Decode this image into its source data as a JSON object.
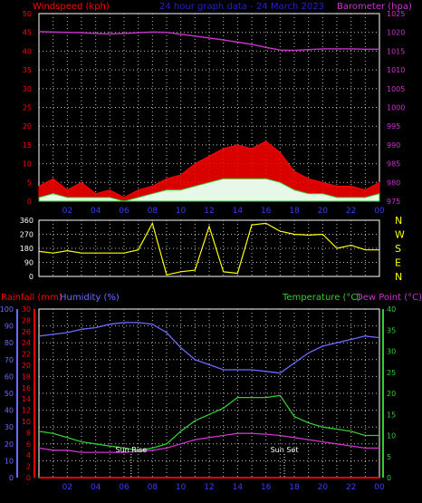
{
  "title": "24 hour graph data - 24 March 2023",
  "colors": {
    "background": "#000000",
    "axis": "#ffffff",
    "grid": "#bdbdbd",
    "wind_label": "#ff0000",
    "baro": "#cc33cc",
    "title": "#2222cc",
    "dir": "#ffff00",
    "rain": "#ff0000",
    "humidity": "#6b6bff",
    "temp": "#33cc33",
    "dew": "#cc33cc",
    "sun": "#ffffff",
    "time": "#3b3bff"
  },
  "time_ticks": [
    "02",
    "04",
    "06",
    "08",
    "10",
    "12",
    "14",
    "16",
    "18",
    "20",
    "22",
    "00"
  ],
  "chart_data": [
    {
      "type": "line",
      "id": "wind-baro",
      "title": "24 hour graph data - 24 March 2023",
      "ylabel_left": "Windspeed (kph)",
      "ylabel_right": "Barometer (hpa)",
      "y_left_ticks": [
        0,
        5,
        10,
        15,
        20,
        25,
        30,
        35,
        40,
        45,
        50
      ],
      "y_right_ticks": [
        975,
        980,
        985,
        990,
        995,
        1000,
        1005,
        1010,
        1015,
        1020,
        1025
      ],
      "ylim_left": [
        0,
        50
      ],
      "ylim_right": [
        975,
        1025
      ],
      "grid": true,
      "x_hours": [
        0,
        1,
        2,
        3,
        4,
        5,
        6,
        7,
        8,
        9,
        10,
        11,
        12,
        13,
        14,
        15,
        16,
        17,
        18,
        19,
        20,
        21,
        22,
        23,
        24
      ],
      "series": [
        {
          "name": "Barometer (hpa)",
          "axis": "right",
          "color": "#cc33cc",
          "values": [
            1020.2,
            1020.1,
            1020.0,
            1019.9,
            1019.7,
            1019.6,
            1019.7,
            1019.9,
            1020.1,
            1020.0,
            1019.5,
            1019.0,
            1018.5,
            1018.0,
            1017.4,
            1016.8,
            1016.0,
            1015.3,
            1015.2,
            1015.4,
            1015.6,
            1015.6,
            1015.6,
            1015.5,
            1015.5
          ]
        },
        {
          "name": "Wind gust",
          "axis": "left",
          "color": "#ff0000",
          "values": [
            4,
            6,
            3,
            5,
            2,
            3,
            1,
            3,
            4,
            6,
            7,
            10,
            12,
            14,
            15,
            14,
            16,
            13,
            8,
            6,
            5,
            4,
            4,
            3,
            5
          ]
        },
        {
          "name": "Wind speed",
          "axis": "left",
          "color": "#ffffff",
          "values": [
            1,
            2,
            1,
            1,
            1,
            1,
            0,
            1,
            2,
            3,
            3,
            4,
            5,
            6,
            6,
            6,
            6,
            5,
            3,
            2,
            2,
            1,
            1,
            1,
            2
          ]
        }
      ]
    },
    {
      "type": "line",
      "id": "direction",
      "ylabel_right": [
        "N",
        "W",
        "S",
        "E",
        "N"
      ],
      "y_left_ticks": [
        0,
        90,
        180,
        270,
        360
      ],
      "ylim": [
        0,
        360
      ],
      "x_hours": [
        0,
        1,
        2,
        3,
        4,
        5,
        6,
        7,
        8,
        9,
        10,
        11,
        12,
        13,
        14,
        15,
        16,
        17,
        18,
        19,
        20,
        21,
        22,
        23,
        24
      ],
      "series": [
        {
          "name": "Wind direction",
          "color": "#ffff00",
          "values": [
            160,
            150,
            165,
            150,
            150,
            150,
            150,
            170,
            340,
            10,
            30,
            40,
            320,
            30,
            20,
            330,
            340,
            290,
            270,
            265,
            270,
            180,
            200,
            170,
            170
          ]
        }
      ]
    },
    {
      "type": "line",
      "id": "temp-humidity",
      "ylabel_rain": "Rainfall (mm)",
      "ylabel_hum": "Humidity (%)",
      "ylabel_temp": "Temperature (°C)",
      "ylabel_dew": "Dew Point (°C)",
      "rain_ticks": [
        0,
        2,
        4,
        6,
        8,
        10,
        12,
        14,
        16,
        18,
        20,
        22,
        24,
        26,
        28,
        30
      ],
      "humidity_ticks": [
        0,
        10,
        20,
        30,
        40,
        50,
        60,
        70,
        80,
        90,
        100
      ],
      "temp_ticks": [
        0,
        5,
        10,
        15,
        20,
        25,
        30,
        35,
        40
      ],
      "ylim_rain": [
        0,
        30
      ],
      "ylim_humidity": [
        0,
        100
      ],
      "ylim_temp": [
        0,
        40
      ],
      "grid": true,
      "x_hours": [
        0,
        1,
        2,
        3,
        4,
        5,
        6,
        7,
        8,
        9,
        10,
        11,
        12,
        13,
        14,
        15,
        16,
        17,
        18,
        19,
        20,
        21,
        22,
        23,
        24
      ],
      "annotations": [
        {
          "label": "Sun Rise",
          "hour": 6.5
        },
        {
          "label": "Sun Set",
          "hour": 17.3
        }
      ],
      "series": [
        {
          "name": "Humidity (%)",
          "axis": "humidity",
          "color": "#6b6bff",
          "values": [
            84,
            85,
            86,
            88,
            89,
            91,
            92,
            92,
            91,
            86,
            77,
            70,
            67,
            64,
            64,
            64,
            63,
            62,
            68,
            74,
            78,
            80,
            82,
            84,
            83
          ]
        },
        {
          "name": "Temperature (°C)",
          "axis": "temp",
          "color": "#33cc33",
          "values": [
            11,
            10.5,
            9.5,
            8.5,
            8,
            7.5,
            7,
            6.5,
            7,
            8,
            11,
            13.5,
            15,
            16.5,
            19,
            19,
            19,
            19.5,
            14.5,
            13,
            12,
            11.5,
            11,
            10,
            10
          ]
        },
        {
          "name": "Dew Point (°C)",
          "axis": "temp",
          "color": "#cc33cc",
          "values": [
            7,
            6.5,
            6.5,
            6,
            6,
            6,
            6,
            6.2,
            6.5,
            7,
            8,
            9,
            9.5,
            10,
            10.5,
            10.5,
            10.3,
            10,
            9.5,
            9,
            8.5,
            8,
            7.5,
            7,
            7
          ]
        },
        {
          "name": "Rainfall (mm)",
          "axis": "rain",
          "color": "#ff0000",
          "values": [
            0,
            0,
            0,
            0,
            0,
            0,
            0,
            0,
            0,
            0,
            0,
            0,
            0,
            0,
            0,
            0,
            0,
            0,
            0,
            0,
            0,
            0,
            0,
            0,
            0
          ]
        }
      ]
    }
  ]
}
